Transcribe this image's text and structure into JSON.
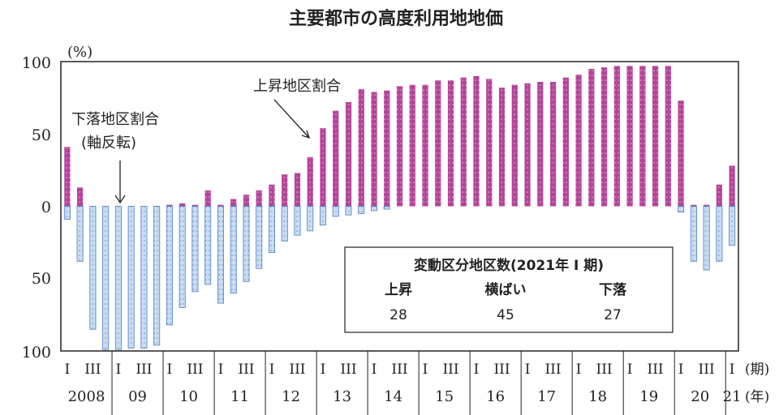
{
  "chart_data": {
    "type": "bar",
    "title": "主要都市の高度利用地地価",
    "unit_label": "(%)",
    "y_ticks_top": [
      "100",
      "50",
      "0"
    ],
    "y_ticks_bottom": [
      "50",
      "100"
    ],
    "ylim": [
      -100,
      100
    ],
    "period_labels": [
      "I",
      "III"
    ],
    "period_axis_label": "(期)",
    "year_axis_label": "(年)",
    "years": [
      "2008",
      "09",
      "10",
      "11",
      "12",
      "13",
      "14",
      "15",
      "16",
      "17",
      "18",
      "19",
      "20",
      "21"
    ],
    "colors": {
      "up": "#b5449a",
      "down": "#bcd3ec",
      "down_edge": "#4f7fc4"
    },
    "series": [
      {
        "name": "上昇地区割合",
        "values": [
          41,
          13,
          0,
          0,
          0,
          0,
          0,
          0,
          1,
          2,
          1,
          11,
          1,
          5,
          8,
          11,
          15,
          22,
          23,
          34,
          54,
          66,
          72,
          81,
          79,
          80,
          83,
          84,
          84,
          87,
          87,
          89,
          90,
          88,
          82,
          84,
          85,
          86,
          86,
          89,
          91,
          95,
          96,
          97,
          97,
          97,
          97,
          97,
          73,
          1,
          1,
          15,
          28
        ]
      },
      {
        "name": "下落地区割合",
        "values": [
          9,
          38,
          85,
          99,
          99,
          98,
          98,
          96,
          82,
          70,
          59,
          54,
          67,
          60,
          52,
          43,
          32,
          24,
          20,
          17,
          13,
          7,
          6,
          5,
          3,
          2,
          0,
          0,
          0,
          0,
          0,
          0,
          0,
          0,
          0,
          0,
          0,
          0,
          0,
          0,
          0,
          0,
          0,
          0,
          0,
          0,
          0,
          0,
          4,
          38,
          44,
          38,
          27
        ]
      }
    ],
    "annotations": {
      "up_label": "上昇地区割合",
      "down_label_line1": "下落地区割合",
      "down_label_line2": "(軸反転)"
    },
    "summary_box": {
      "title": "変動区分地区数(2021年 I 期)",
      "headers": [
        "上昇",
        "横ばい",
        "下落"
      ],
      "values": [
        "28",
        "45",
        "27"
      ]
    }
  }
}
